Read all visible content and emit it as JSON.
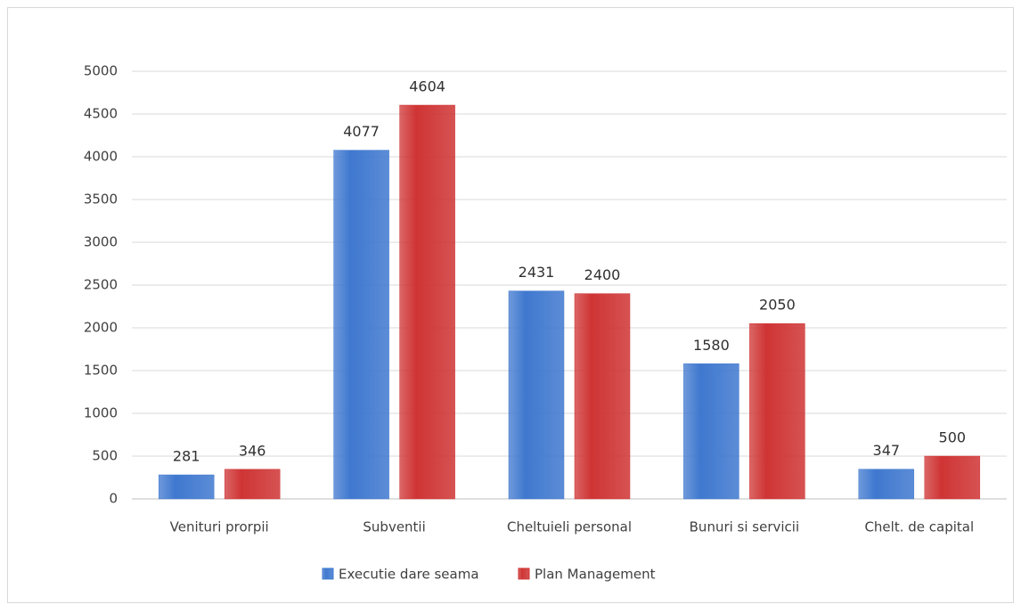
{
  "chart_data": {
    "type": "bar",
    "categories": [
      "Venituri prorpii",
      "Subventii",
      "Cheltuieli personal",
      "Bunuri si servicii",
      "Chelt. de capital"
    ],
    "series": [
      {
        "name": "Executie dare seama",
        "color": "#3f78cf",
        "values": [
          281,
          4077,
          2431,
          1580,
          347
        ]
      },
      {
        "name": "Plan Management",
        "color": "#cf3434",
        "values": [
          346,
          4604,
          2400,
          2050,
          500
        ]
      }
    ],
    "ylim": [
      0,
      5000
    ],
    "yticks": [
      0,
      500,
      1000,
      1500,
      2000,
      2500,
      3000,
      3500,
      4000,
      4500,
      5000
    ],
    "grid": true,
    "legend": "bottom"
  }
}
